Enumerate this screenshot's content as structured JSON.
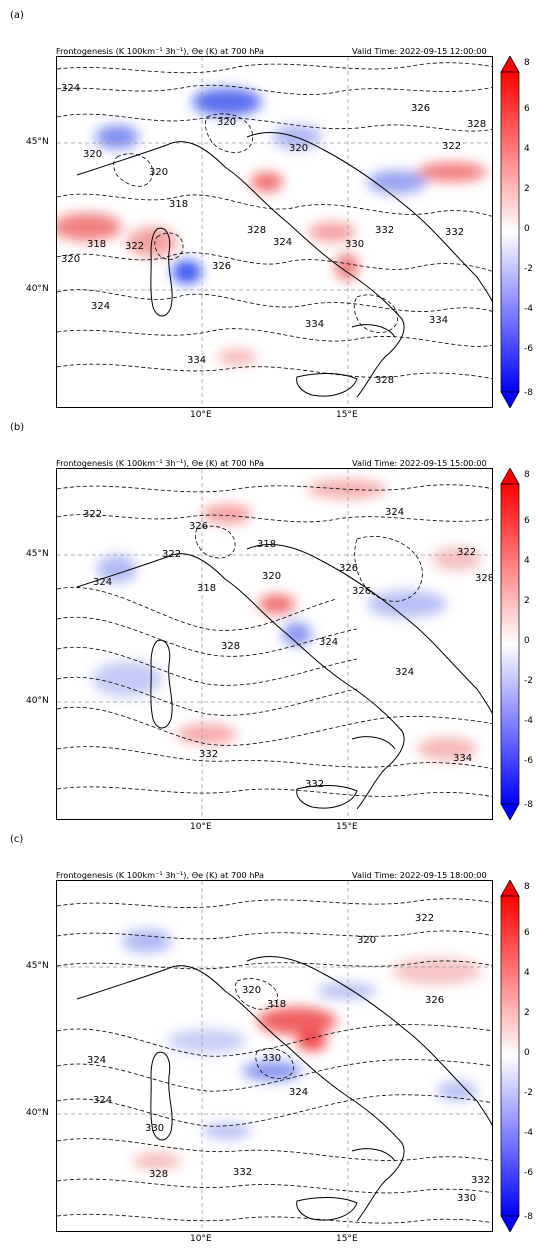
{
  "figure": {
    "panels": [
      {
        "label": "(a)",
        "title_left": "Frontogenesis (K 100km⁻¹ 3h⁻¹), Θe (K) at 700 hPa",
        "title_right": "Valid Time: 2022-09-15 12:00:00",
        "lat_labels": [
          "45°N",
          "40°N"
        ],
        "lon_labels": [
          "10°E",
          "15°E"
        ],
        "contour_labels": [
          "324",
          "320",
          "320",
          "318",
          "318",
          "322",
          "326",
          "320",
          "324",
          "328",
          "330",
          "332",
          "334",
          "334",
          "328",
          "334",
          "320",
          "326",
          "328",
          "332",
          "322",
          "320",
          "324"
        ]
      },
      {
        "label": "(b)",
        "title_left": "Frontogenesis (K 100km⁻¹ 3h⁻¹), Θe (K) at 700 hPa",
        "title_right": "Valid Time: 2022-09-15 15:00:00",
        "lat_labels": [
          "45°N",
          "40°N"
        ],
        "lon_labels": [
          "10°E",
          "15°E"
        ],
        "contour_labels": [
          "322",
          "326",
          "322",
          "324",
          "318",
          "320",
          "318",
          "326",
          "324",
          "328",
          "332",
          "332",
          "334",
          "324",
          "326",
          "322",
          "328",
          "324"
        ]
      },
      {
        "label": "(c)",
        "title_left": "Frontogenesis (K 100km⁻¹ 3h⁻¹), Θe (K) at 700 hPa",
        "title_right": "Valid Time: 2022-09-15 18:00:00",
        "lat_labels": [
          "45°N",
          "40°N"
        ],
        "lon_labels": [
          "10°E",
          "15°E"
        ],
        "contour_labels": [
          "322",
          "320",
          "326",
          "320",
          "318",
          "324",
          "330",
          "324",
          "324",
          "330",
          "328",
          "332",
          "330",
          "332"
        ]
      }
    ],
    "colorbar": {
      "ticks": [
        "8",
        "6",
        "4",
        "2",
        "0",
        "-2",
        "-4",
        "-6",
        "-8"
      ],
      "colors": {
        "max": "#ff0000",
        "mid": "#ffffff",
        "min": "#0000ff"
      }
    }
  }
}
